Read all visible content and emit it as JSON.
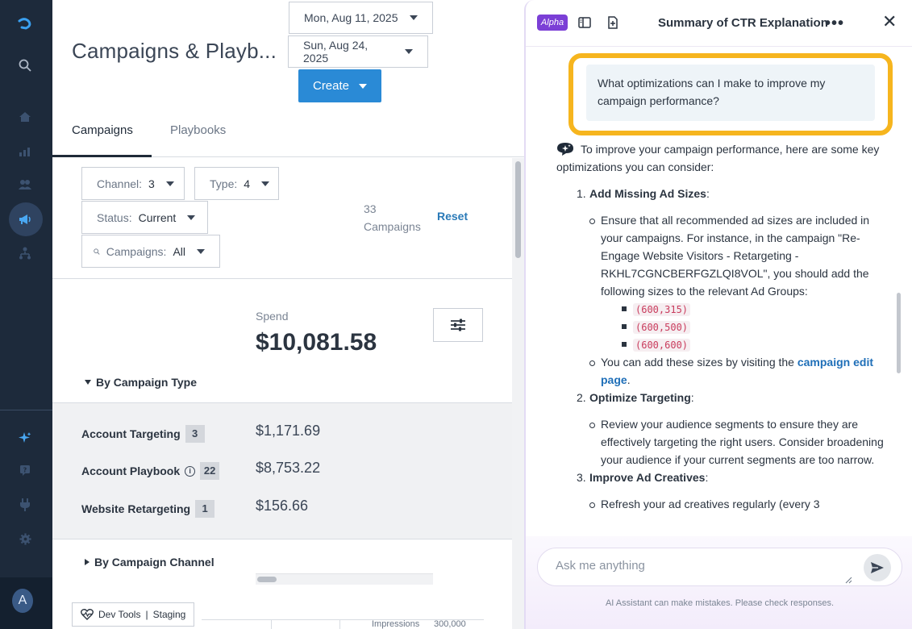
{
  "nav": {
    "avatar_initial": "A",
    "icons": [
      "logo-icon",
      "search-icon",
      "home-icon",
      "reports-icon",
      "audiences-icon",
      "campaigns-icon",
      "playbooks-icon",
      "sparkle-icon",
      "help-icon",
      "integrations-icon",
      "settings-icon"
    ]
  },
  "header": {
    "page_title": "Campaigns & Playb...",
    "start_date": "Mon, Aug 11, 2025",
    "end_date": "Sun, Aug 24, 2025",
    "create_label": "Create"
  },
  "tabs": [
    {
      "label": "Campaigns",
      "active": true
    },
    {
      "label": "Playbooks",
      "active": false
    }
  ],
  "filters": {
    "channel_label": "Channel:",
    "channel_value": "3",
    "type_label": "Type:",
    "type_value": "4",
    "status_label": "Status:",
    "status_value": "Current",
    "campaigns_label": "Campaigns:",
    "campaigns_value": "All",
    "count_number": "33",
    "count_label": "Campaigns",
    "reset_label": "Reset"
  },
  "summary": {
    "spend_label": "Spend",
    "spend_value": "$10,081.58",
    "by_type_label": "By Campaign Type",
    "by_channel_label": "By Campaign Channel"
  },
  "campaign_types": [
    {
      "name": "Account Targeting",
      "count": "3",
      "amount": "$1,171.69"
    },
    {
      "name": "Account Playbook",
      "count": "22",
      "amount": "$8,753.22"
    },
    {
      "name": "Website Retargeting",
      "count": "1",
      "amount": "$156.66"
    }
  ],
  "devtools": {
    "label": "Dev Tools",
    "separator": "|",
    "env": "Staging"
  },
  "table_stub": {
    "col_label": "Impressions",
    "col_value": "300,000"
  },
  "chat": {
    "alpha_badge": "Alpha",
    "title": "Summary of CTR Explanation",
    "more": "•••",
    "close": "✕",
    "user_message": "What optimizations can I make to improve my campaign performance?",
    "ai_intro": "To improve your campaign performance, here are some key optimizations you can consider:",
    "item1_num": "1.",
    "item1_title": "Add Missing Ad Sizes",
    "item1_bullet1": "Ensure that all recommended ad sizes are included in your campaigns. For instance, in the campaign \"Re-Engage Website Visitors - Retargeting - RKHL7CGNCBERFGZLQI8VOL\", you should add the following sizes to the relevant Ad Groups:",
    "sizes": [
      "(600,315)",
      "(600,500)",
      "(600,600)"
    ],
    "item1_bullet2_pre": "You can add these sizes by visiting the",
    "item1_bullet2_link": "campaign edit page",
    "item2_num": "2.",
    "item2_title": "Optimize Targeting",
    "item2_bullet1": "Review your audience segments to ensure they are effectively targeting the right users. Consider broadening your audience if your current segments are too narrow.",
    "item3_num": "3.",
    "item3_title": "Improve Ad Creatives",
    "item3_bullet1_partial": "Refresh your ad creatives regularly (every 3",
    "input_placeholder": "Ask me anything",
    "disclaimer": "AI Assistant can make mistakes. Please check responses."
  },
  "colors": {
    "nav_bg": "#1d2a3b",
    "primary": "#2a8ad6",
    "highlight": "#f6b51e",
    "alpha": "#7b3fd6",
    "link": "#1f6fb8"
  }
}
